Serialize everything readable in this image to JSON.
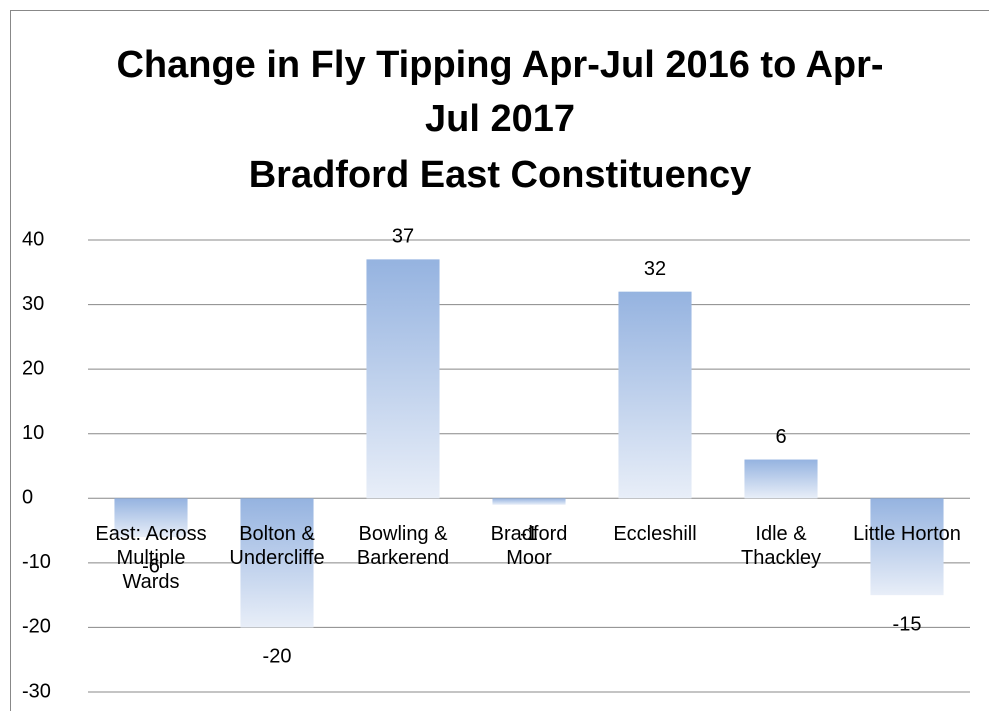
{
  "chart_data": {
    "type": "bar",
    "title": "Change in Fly Tipping Apr-Jul 2016 to Apr-Jul 2017",
    "subtitle": "Bradford East Constituency",
    "categories": [
      "East: Across Multiple Wards",
      "Bolton & Undercliffe",
      "Bowling & Barkerend",
      "Bradford Moor",
      "Eccleshill",
      "Idle & Thackley",
      "Little Horton"
    ],
    "values": [
      -6,
      -20,
      37,
      -1,
      32,
      6,
      -15
    ],
    "color": "#95b3e0",
    "ylim": [
      -30,
      40
    ],
    "yticks": [
      -30,
      -20,
      -10,
      0,
      10,
      20,
      30,
      40
    ],
    "grid": true
  }
}
